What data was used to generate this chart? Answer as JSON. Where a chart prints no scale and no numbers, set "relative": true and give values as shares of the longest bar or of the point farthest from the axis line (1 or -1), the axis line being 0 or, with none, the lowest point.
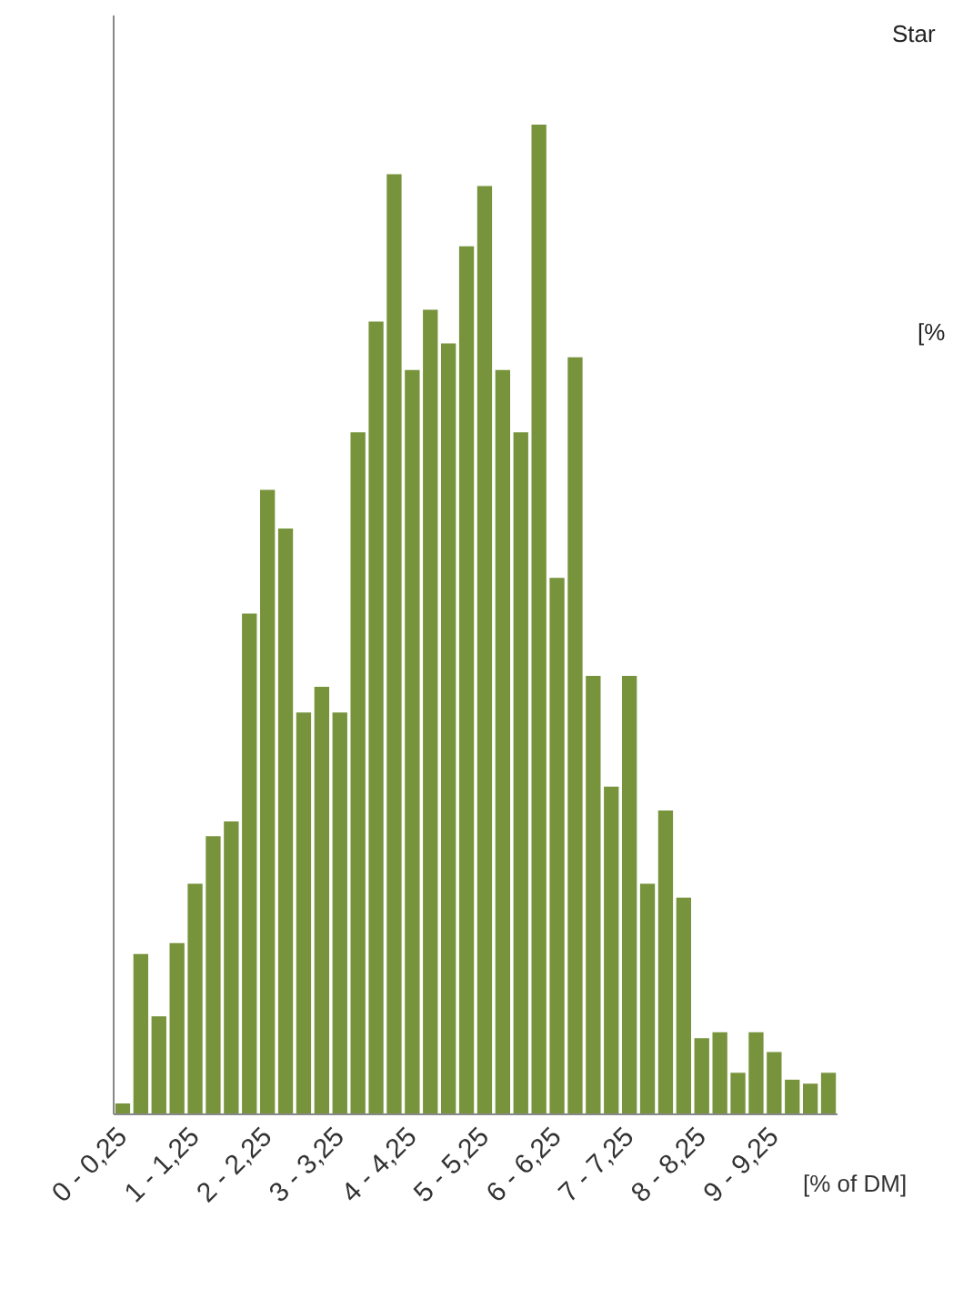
{
  "chart_data": {
    "type": "bar",
    "relative": true,
    "xlabel": "[% of DM]",
    "color": "#77933c",
    "categories": [
      "0 - 0,25",
      null,
      null,
      null,
      "1 - 1,25",
      null,
      null,
      null,
      "2 - 2,25",
      null,
      null,
      null,
      "3 - 3,25",
      null,
      null,
      null,
      "4 - 4,25",
      null,
      null,
      null,
      "5 - 5,25",
      null,
      null,
      null,
      "6 - 6,25",
      null,
      null,
      null,
      "7 - 7,25",
      null,
      null,
      null,
      "8 - 8,25",
      null,
      null,
      null,
      "9 - 9,25",
      null,
      null,
      null
    ],
    "values": [
      0.011,
      0.162,
      0.099,
      0.173,
      0.233,
      0.281,
      0.296,
      0.506,
      0.631,
      0.592,
      0.406,
      0.432,
      0.406,
      0.689,
      0.801,
      0.95,
      0.752,
      0.813,
      0.779,
      0.877,
      0.938,
      0.752,
      0.689,
      1,
      0.542,
      0.765,
      0.443,
      0.331,
      0.443,
      0.233,
      0.307,
      0.219,
      0.077,
      0.083,
      0.042,
      0.083,
      0.063,
      0.035,
      0.031,
      0.042
    ],
    "annotations": [
      "Star",
      "[%"
    ],
    "grid": false
  }
}
